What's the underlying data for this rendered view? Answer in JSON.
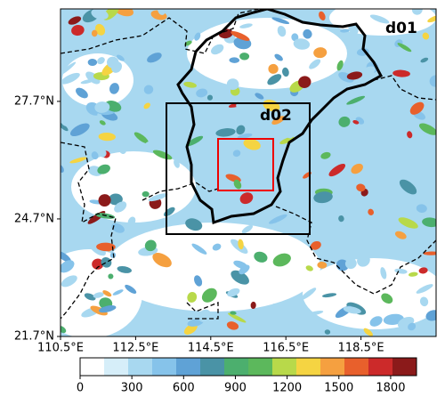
{
  "map": {
    "lonlim": [
      110.5,
      120.5
    ],
    "latlim": [
      21.7,
      30.06
    ],
    "xticks": [
      {
        "value": 110.5,
        "label": "110.5°E"
      },
      {
        "value": 112.5,
        "label": "112.5°E"
      },
      {
        "value": 114.5,
        "label": "114.5°E"
      },
      {
        "value": 116.5,
        "label": "116.5°E"
      },
      {
        "value": 118.5,
        "label": "118.5°E"
      }
    ],
    "yticks": [
      {
        "value": 21.7,
        "label": "21.7°N"
      },
      {
        "value": 24.7,
        "label": "24.7°N"
      },
      {
        "value": 27.7,
        "label": "27.7°N"
      }
    ],
    "domain_labels": [
      "d01",
      "d02"
    ],
    "colorbar": {
      "lim": [
        0,
        1950
      ],
      "ticks": [
        0,
        300,
        600,
        900,
        1200,
        1500,
        1800
      ],
      "colors": [
        "#ffffff",
        "#d6eef9",
        "#a8d8f0",
        "#86c3ea",
        "#5fa2d6",
        "#4a93a6",
        "#4caf6e",
        "#5cb85c",
        "#b8d94a",
        "#f5d442",
        "#f5a040",
        "#e8602c",
        "#cc2a2a",
        "#8b1a1a"
      ]
    }
  }
}
